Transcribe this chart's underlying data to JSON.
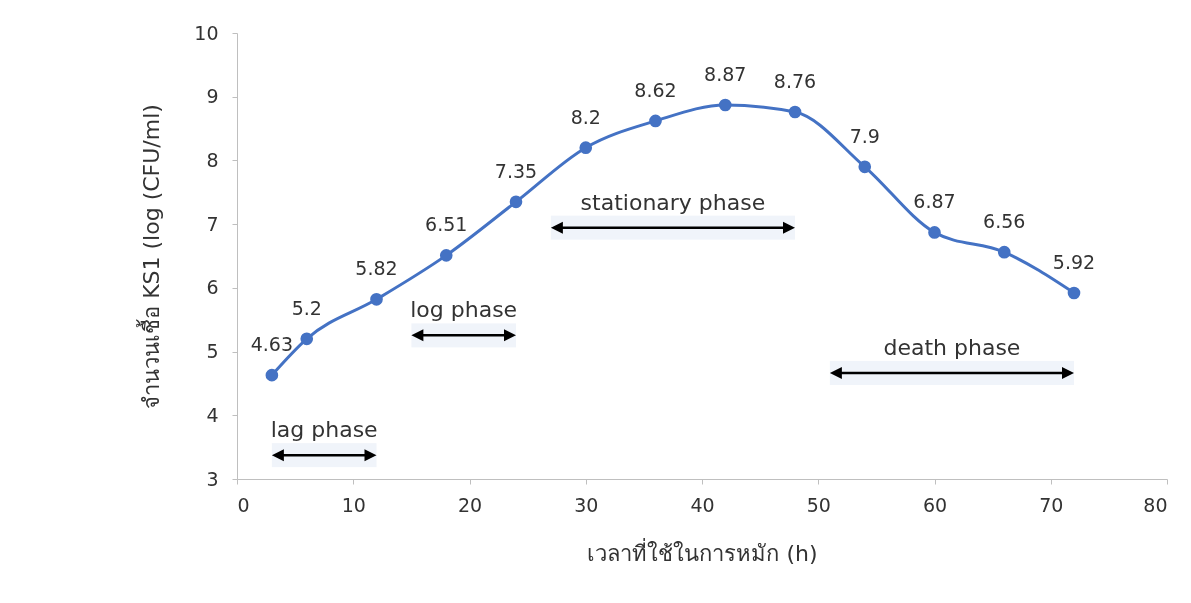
{
  "chart_data": {
    "type": "line",
    "xlabel": "เวลาที่ใช้ในการหมัก (h)",
    "ylabel": "จำนวนเชื้อ KS1 (log (CFU/ml)",
    "x": [
      3,
      6,
      12,
      18,
      24,
      30,
      36,
      42,
      48,
      54,
      60,
      66,
      72
    ],
    "series": [
      {
        "color": "#4472c4",
        "values": [
          4.63,
          5.2,
          5.82,
          6.51,
          7.35,
          8.2,
          8.62,
          8.87,
          8.76,
          7.9,
          6.87,
          6.56,
          5.92
        ]
      }
    ],
    "xlim": [
      0,
      80
    ],
    "xticks": [
      0,
      10,
      20,
      30,
      40,
      50,
      60,
      70,
      80
    ],
    "ylim": [
      3,
      10
    ],
    "yticks": [
      3,
      4,
      5,
      6,
      7,
      8,
      9,
      10
    ],
    "grid": false,
    "legend": false,
    "marker": "circle",
    "data_labels": true,
    "bands": [
      {
        "axis": "x",
        "from": 3,
        "to": 12,
        "label": "lag phase"
      },
      {
        "axis": "x",
        "from": 15,
        "to": 24,
        "label": "log phase"
      },
      {
        "axis": "x",
        "from": 27,
        "to": 48,
        "label": "stationary phase"
      },
      {
        "axis": "x",
        "from": 51,
        "to": 72,
        "label": "death phase"
      }
    ]
  }
}
